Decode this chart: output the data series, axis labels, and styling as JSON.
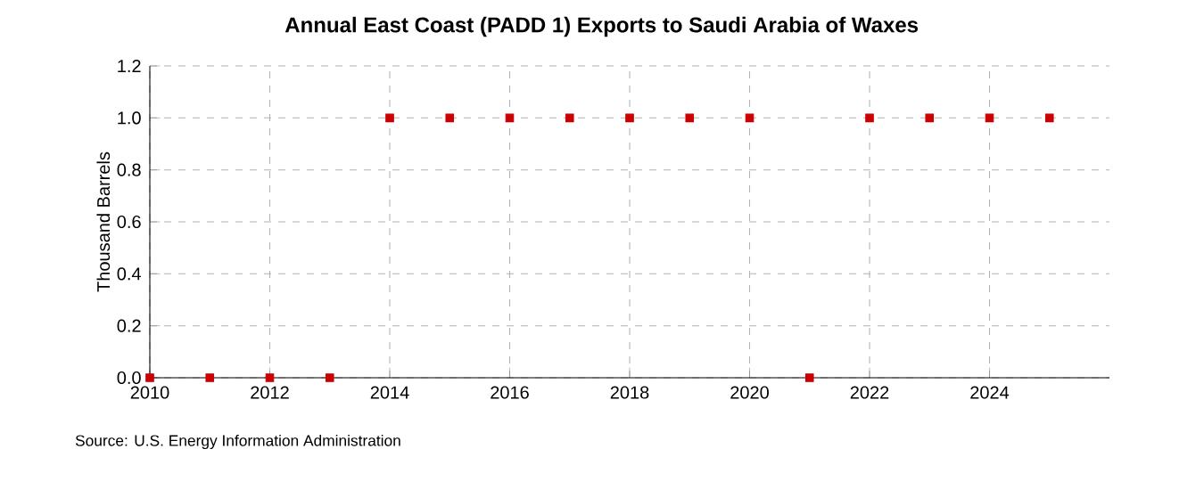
{
  "chart_data": {
    "type": "scatter",
    "title": "Annual East Coast (PADD 1) Exports to Saudi Arabia of Waxes",
    "ylabel": "Thousand Barrels",
    "x": [
      2010,
      2011,
      2012,
      2013,
      2014,
      2015,
      2016,
      2017,
      2018,
      2019,
      2020,
      2021,
      2022,
      2023,
      2024,
      2025
    ],
    "series": [
      {
        "color": "#cc0000",
        "values": [
          0,
          0,
          0,
          0,
          1,
          1,
          1,
          1,
          1,
          1,
          1,
          0,
          1,
          1,
          1,
          1
        ]
      }
    ],
    "xlim": [
      2010,
      2026
    ],
    "xticks": [
      2010,
      2012,
      2014,
      2016,
      2018,
      2020,
      2022,
      2024
    ],
    "ylim": [
      0,
      1.2
    ],
    "yticks": [
      {
        "value": 0,
        "label": "0.0"
      },
      {
        "value": 0.2,
        "label": "0.2"
      },
      {
        "value": 0.4,
        "label": "0.4"
      },
      {
        "value": 0.6,
        "label": "0.6"
      },
      {
        "value": 0.8,
        "label": "0.8"
      },
      {
        "value": 1,
        "label": "1.0"
      },
      {
        "value": 1.2,
        "label": "1.2"
      }
    ],
    "grid": true,
    "marker": "square",
    "annotations": [
      "Source: U.S. Energy Information Administration"
    ]
  }
}
